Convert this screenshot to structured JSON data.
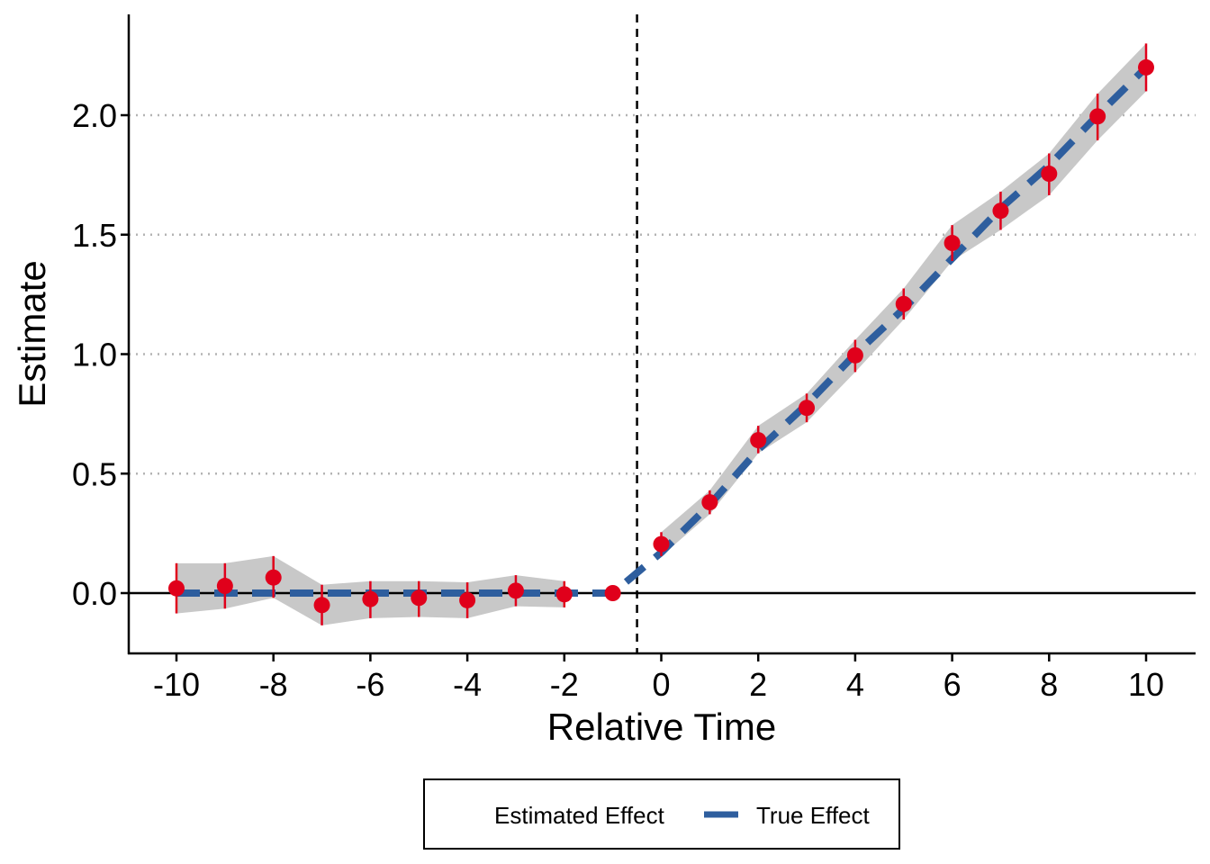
{
  "chart_data": {
    "type": "scatter",
    "title": "",
    "xlabel": "Relative Time",
    "ylabel": "Estimate",
    "xlim": [
      -11,
      11
    ],
    "ylim": [
      -0.25,
      2.4
    ],
    "x_ticks": [
      -10,
      -8,
      -6,
      -4,
      -2,
      0,
      2,
      4,
      6,
      8,
      10
    ],
    "x_tick_labels": [
      "-10",
      "-8",
      "-6",
      "-4",
      "-2",
      "0",
      "2",
      "4",
      "6",
      "8",
      "10"
    ],
    "y_ticks": [
      0.0,
      0.5,
      1.0,
      1.5,
      2.0
    ],
    "y_tick_labels": [
      "0.0",
      "0.5",
      "1.0",
      "1.5",
      "2.0"
    ],
    "grid": "horizontal dotted at y ticks",
    "treatment_line_x": -0.5,
    "zero_line_y": 0,
    "legend_position": "bottom",
    "series": [
      {
        "name": "Estimated Effect",
        "kind": "points_with_error_bars",
        "color": "#e0001b",
        "x": [
          -10,
          -9,
          -8,
          -7,
          -6,
          -5,
          -4,
          -3,
          -2,
          -1,
          0,
          1,
          2,
          3,
          4,
          5,
          6,
          7,
          8,
          9,
          10
        ],
        "y": [
          0.02,
          0.03,
          0.065,
          -0.05,
          -0.025,
          -0.02,
          -0.03,
          0.01,
          -0.005,
          0.0,
          0.205,
          0.38,
          0.64,
          0.775,
          0.995,
          1.21,
          1.465,
          1.6,
          1.755,
          1.995,
          2.2
        ],
        "lower": [
          -0.085,
          -0.065,
          -0.02,
          -0.135,
          -0.105,
          -0.1,
          -0.105,
          -0.055,
          -0.06,
          null,
          0.155,
          0.33,
          0.585,
          0.715,
          0.925,
          1.145,
          1.39,
          1.52,
          1.665,
          1.895,
          2.1
        ],
        "upper": [
          0.125,
          0.125,
          0.155,
          0.035,
          0.05,
          0.05,
          0.045,
          0.075,
          0.05,
          null,
          0.255,
          0.43,
          0.7,
          0.835,
          1.06,
          1.275,
          1.54,
          1.68,
          1.84,
          2.09,
          2.3
        ]
      },
      {
        "name": "True Effect",
        "kind": "dashed_line",
        "color": "#2e5e9e",
        "x": [
          -10,
          -9,
          -8,
          -7,
          -6,
          -5,
          -4,
          -3,
          -2,
          -1,
          0,
          1,
          2,
          3,
          4,
          5,
          6,
          7,
          8,
          9,
          10
        ],
        "y": [
          0,
          0,
          0,
          0,
          0,
          0,
          0,
          0,
          0,
          0,
          0.17,
          0.37,
          0.6,
          0.79,
          1.0,
          1.19,
          1.4,
          1.61,
          1.79,
          2.0,
          2.2
        ]
      }
    ],
    "band_color": "#c8c8c8"
  }
}
